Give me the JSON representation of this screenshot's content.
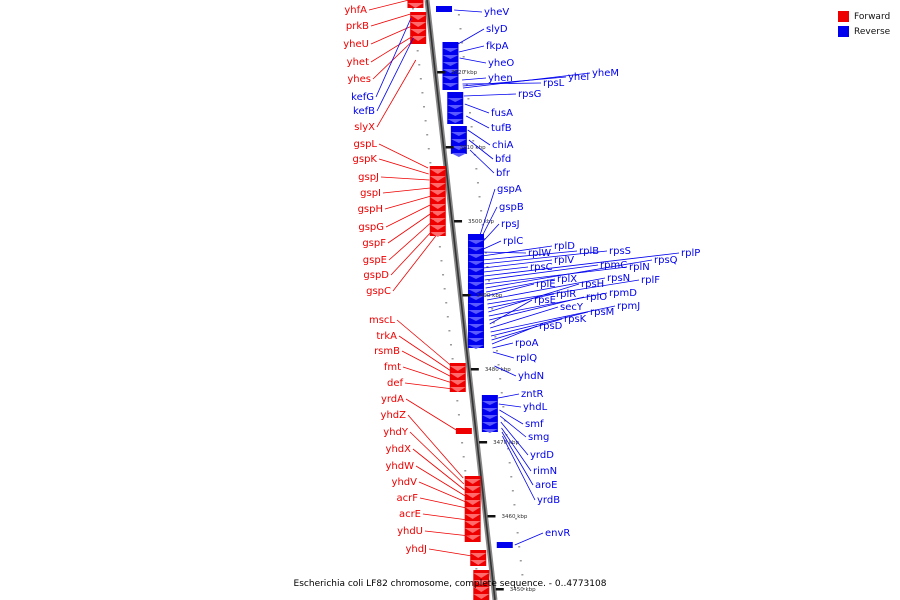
{
  "caption": "Escherichia coli LF82 chromosome, complete sequence. - 0..4773108",
  "legend": {
    "forward_label": "Forward",
    "reverse_label": "Reverse",
    "forward_color": "#ee0000",
    "reverse_color": "#0000ee"
  },
  "ticks": [
    "3520 kbp",
    "3510 kbp",
    "3500 kbp",
    "3490 kbp",
    "3480 kbp",
    "3470 kbp",
    "3460 kbp",
    "3450 kbp"
  ],
  "forward_genes": [
    "yhfA",
    "prkB",
    "yheU",
    "yhet",
    "yhes",
    "kefG",
    "kefB",
    "slyX",
    "gspL",
    "gspK",
    "gspJ",
    "gspI",
    "gspH",
    "gspG",
    "gspF",
    "gspE",
    "gspD",
    "gspC",
    "mscL",
    "trkA",
    "rsmB",
    "fmt",
    "def",
    "yrdA",
    "yhdZ",
    "yhdY",
    "yhdX",
    "yhdW",
    "yhdV",
    "acrF",
    "acrE",
    "yhdU",
    "yhdJ"
  ],
  "reverse_genes": [
    "yheV",
    "slyD",
    "fkpA",
    "yheO",
    "yhen",
    "rpsL",
    "yhel",
    "yheM",
    "rpsG",
    "fusA",
    "tufB",
    "chiA",
    "bfd",
    "bfr",
    "gspA",
    "gspB",
    "rpsJ",
    "rplC",
    "rplW",
    "rplD",
    "rplB",
    "rpsS",
    "rplV",
    "rpsC",
    "rplP",
    "rpmC",
    "rplN",
    "rpsQ",
    "rplX",
    "rplE",
    "rpsN",
    "rplF",
    "rplR",
    "rpsH",
    "rpmD",
    "rplO",
    "rpsE",
    "secY",
    "rpmJ",
    "rpsM",
    "rpsK",
    "rpsD",
    "rpoA",
    "rplQ",
    "yhdN",
    "zntR",
    "yhdL",
    "smf",
    "smg",
    "yrdD",
    "rimN",
    "aroE",
    "yrdB",
    "envR"
  ]
}
